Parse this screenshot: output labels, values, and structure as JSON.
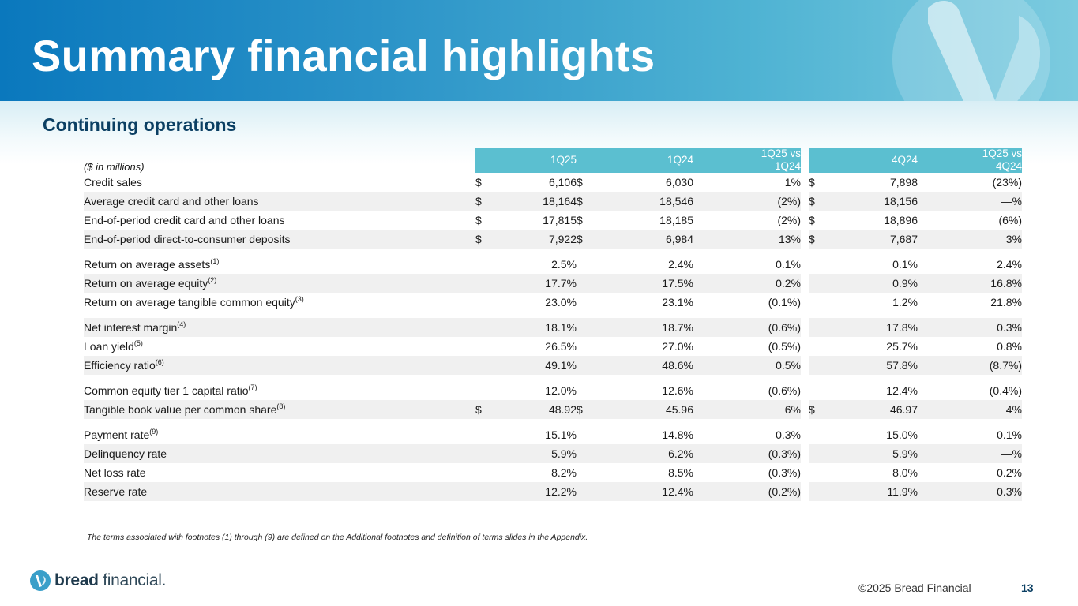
{
  "header": {
    "title": "Summary financial highlights"
  },
  "subtitle": "Continuing operations",
  "table": {
    "units_label": "($ in millions)",
    "columns": [
      "1Q25",
      "1Q24",
      "1Q25 vs\n1Q24",
      "4Q24",
      "1Q25 vs\n4Q24"
    ],
    "col_line1": [
      "1Q25",
      "1Q24",
      "1Q25 vs",
      "4Q24",
      "1Q25 vs"
    ],
    "col_line2": [
      "",
      "",
      "1Q24",
      "",
      "4Q24"
    ],
    "rows": [
      {
        "label": "Credit sales",
        "sup": "",
        "c1": "$",
        "v1": "6,106",
        "c2": "$",
        "v2": "6,030",
        "v3": "1%",
        "c4": "$",
        "v4": "7,898",
        "v5": "(23%)"
      },
      {
        "label": "Average credit card and other loans",
        "sup": "",
        "c1": "$",
        "v1": "18,164",
        "c2": "$",
        "v2": "18,546",
        "v3": "(2%)",
        "c4": "$",
        "v4": "18,156",
        "v5": "—%"
      },
      {
        "label": "End-of-period credit card and other loans",
        "sup": "",
        "c1": "$",
        "v1": "17,815",
        "c2": "$",
        "v2": "18,185",
        "v3": "(2%)",
        "c4": "$",
        "v4": "18,896",
        "v5": "(6%)"
      },
      {
        "label": "End-of-period direct-to-consumer deposits",
        "sup": "",
        "c1": "$",
        "v1": "7,922",
        "c2": "$",
        "v2": "6,984",
        "v3": "13%",
        "c4": "$",
        "v4": "7,687",
        "v5": "3%"
      },
      {
        "label": "Return on average assets",
        "sup": "(1)",
        "c1": "",
        "v1": "2.5%",
        "c2": "",
        "v2": "2.4%",
        "v3": "0.1%",
        "c4": "",
        "v4": "0.1%",
        "v5": "2.4%"
      },
      {
        "label": "Return on average equity",
        "sup": "(2)",
        "c1": "",
        "v1": "17.7%",
        "c2": "",
        "v2": "17.5%",
        "v3": "0.2%",
        "c4": "",
        "v4": "0.9%",
        "v5": "16.8%"
      },
      {
        "label": "Return on average tangible common equity",
        "sup": "(3)",
        "c1": "",
        "v1": "23.0%",
        "c2": "",
        "v2": "23.1%",
        "v3": "(0.1%)",
        "c4": "",
        "v4": "1.2%",
        "v5": "21.8%"
      },
      {
        "label": "Net interest margin",
        "sup": "(4)",
        "c1": "",
        "v1": "18.1%",
        "c2": "",
        "v2": "18.7%",
        "v3": "(0.6%)",
        "c4": "",
        "v4": "17.8%",
        "v5": "0.3%"
      },
      {
        "label": "Loan yield",
        "sup": "(5)",
        "c1": "",
        "v1": "26.5%",
        "c2": "",
        "v2": "27.0%",
        "v3": "(0.5%)",
        "c4": "",
        "v4": "25.7%",
        "v5": "0.8%"
      },
      {
        "label": "Efficiency ratio",
        "sup": "(6)",
        "c1": "",
        "v1": "49.1%",
        "c2": "",
        "v2": "48.6%",
        "v3": "0.5%",
        "c4": "",
        "v4": "57.8%",
        "v5": "(8.7%)"
      },
      {
        "label": "Common equity tier 1 capital ratio",
        "sup": "(7)",
        "c1": "",
        "v1": "12.0%",
        "c2": "",
        "v2": "12.6%",
        "v3": "(0.6%)",
        "c4": "",
        "v4": "12.4%",
        "v5": "(0.4%)"
      },
      {
        "label": "Tangible book value per common share",
        "sup": "(8)",
        "c1": "$",
        "v1": "48.92",
        "c2": "$",
        "v2": "45.96",
        "v3": "6%",
        "c4": "$",
        "v4": "46.97",
        "v5": "4%"
      },
      {
        "label": "Payment rate",
        "sup": "(9)",
        "c1": "",
        "v1": "15.1%",
        "c2": "",
        "v2": "14.8%",
        "v3": "0.3%",
        "c4": "",
        "v4": "15.0%",
        "v5": "0.1%"
      },
      {
        "label": "Delinquency rate",
        "sup": "",
        "c1": "",
        "v1": "5.9%",
        "c2": "",
        "v2": "6.2%",
        "v3": "(0.3%)",
        "c4": "",
        "v4": "5.9%",
        "v5": "—%"
      },
      {
        "label": "Net loss rate",
        "sup": "",
        "c1": "",
        "v1": "8.2%",
        "c2": "",
        "v2": "8.5%",
        "v3": "(0.3%)",
        "c4": "",
        "v4": "8.0%",
        "v5": "0.2%"
      },
      {
        "label": "Reserve rate",
        "sup": "",
        "c1": "",
        "v1": "12.2%",
        "c2": "",
        "v2": "12.4%",
        "v3": "(0.2%)",
        "c4": "",
        "v4": "11.9%",
        "v5": "0.3%"
      }
    ]
  },
  "footnote": "The terms associated with footnotes (1) through (9) are defined on the Additional footnotes and definition of terms slides in the Appendix.",
  "footer": {
    "brand_bold": "bread",
    "brand_rest": " financial",
    "brand_mark": ".",
    "copyright": "©2025 Bread Financial",
    "page_number": "13"
  },
  "colors": {
    "header_blue": "#0a78bd",
    "table_header": "#5bbfd0",
    "title_navy": "#0b3f63"
  },
  "icons": {
    "logo": "bread-financial-logo-mark"
  }
}
